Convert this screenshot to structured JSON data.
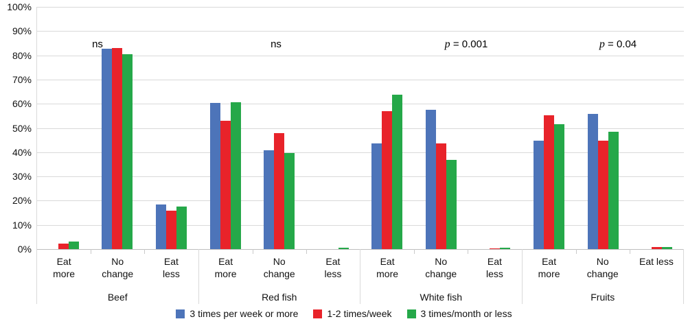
{
  "chart_data": {
    "type": "bar",
    "title": "",
    "xlabel": "",
    "ylabel": "",
    "ylim": [
      0,
      100
    ],
    "ytick_step": 10,
    "ytick_labels": [
      "0%",
      "10%",
      "20%",
      "30%",
      "40%",
      "50%",
      "60%",
      "70%",
      "80%",
      "90%",
      "100%"
    ],
    "grid": "horizontal",
    "legend_position": "bottom",
    "background_color": "#ffffff",
    "gridline_color": "#d9d9d9",
    "axis_color": "#bdbdbd",
    "series": [
      {
        "name": "3 times per week or more",
        "color": "#4d74b9"
      },
      {
        "name": "1-2 times/week",
        "color": "#e8232a"
      },
      {
        "name": "3 times/month or less",
        "color": "#25a849"
      }
    ],
    "groups": [
      {
        "name": "Beef",
        "significance": "ns",
        "subcategories": [
          {
            "label": "Eat\nmore",
            "values": [
              0,
              2.3,
              3
            ]
          },
          {
            "label": "No\nchange",
            "values": [
              82.8,
              83.1,
              80.5
            ]
          },
          {
            "label": "Eat\nless",
            "values": [
              18.3,
              16,
              17.5
            ]
          }
        ]
      },
      {
        "name": "Red fish",
        "significance": "ns",
        "subcategories": [
          {
            "label": "Eat\nmore",
            "values": [
              60.2,
              53,
              60.5
            ]
          },
          {
            "label": "No\nchange",
            "values": [
              40.8,
              47.9,
              39.6
            ]
          },
          {
            "label": "Eat\nless",
            "values": [
              0,
              0,
              0.6
            ]
          }
        ]
      },
      {
        "name": "White fish",
        "significance": "p = 0.001",
        "subcategories": [
          {
            "label": "Eat\nmore",
            "values": [
              43.6,
              57,
              63.8
            ]
          },
          {
            "label": "No\nchange",
            "values": [
              57.4,
              43.6,
              36.8
            ]
          },
          {
            "label": "Eat\nless",
            "values": [
              0,
              0.4,
              0.6
            ]
          }
        ]
      },
      {
        "name": "Fruits",
        "significance": "p = 0.04",
        "subcategories": [
          {
            "label": "Eat\nmore",
            "values": [
              44.9,
              55.3,
              51.6
            ]
          },
          {
            "label": "No\nchange",
            "values": [
              55.9,
              44.8,
              48.4
            ]
          },
          {
            "label": "Eat less",
            "values": [
              0,
              0.8,
              0.9
            ]
          }
        ]
      }
    ]
  }
}
